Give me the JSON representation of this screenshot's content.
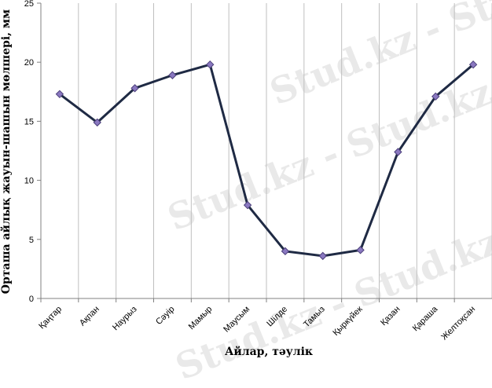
{
  "chart_data": {
    "type": "line",
    "title": "",
    "xlabel": "Айлар, тәулік",
    "ylabel": "Орташа айлық жауын-шашын мөлшері, мм",
    "ylim": [
      0,
      25
    ],
    "yticks": [
      0,
      5,
      10,
      15,
      20,
      25
    ],
    "grid": "vertical",
    "categories": [
      "Қаңтар",
      "Ақпан",
      "Наурыз",
      "Сәуір",
      "Мамыр",
      "Маусым",
      "Шілде",
      "Тамыз",
      "Қыркүйек",
      "Қазан",
      "Қараша",
      "Желтоқсан"
    ],
    "series": [
      {
        "values": [
          17.3,
          14.9,
          17.8,
          18.9,
          19.8,
          7.9,
          4.0,
          3.6,
          4.1,
          12.4,
          17.1,
          19.8
        ]
      }
    ],
    "colors": {
      "line": "#1f2a44",
      "marker": "#8a78c0",
      "marker_edge": "#4b3f7a",
      "grid": "#bfbfbf"
    }
  },
  "watermark": "Stud.kz - Stud.kz"
}
